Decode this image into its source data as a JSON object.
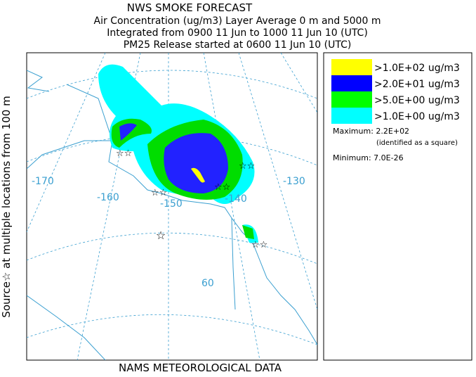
{
  "header": {
    "title": "NWS SMOKE FORECAST",
    "lines": [
      "Air Concentration (ug/m3) Layer Average    0 m and  5000 m",
      "Integrated from 0900 11 Jun to 1000 11 Jun 10 (UTC)",
      "PM25 Release started at 0600 11 Jun 10 (UTC)"
    ]
  },
  "legend": {
    "items": [
      {
        "label": ">1.0E+02 ug/m3",
        "color": "#ffff00"
      },
      {
        "label": ">2.0E+01 ug/m3",
        "color": "#0000ff"
      },
      {
        "label": ">5.0E+00 ug/m3",
        "color": "#00ff00"
      },
      {
        "label": ">1.0E+00 ug/m3",
        "color": "#00ffff"
      }
    ],
    "maximum": "Maximum: 2.2E+02",
    "maximum_note": "(identified as a square)",
    "minimum": "Minimum: 7.0E-26"
  },
  "side_label": "Source☆ at multiple locations from  100 m",
  "footer": "NAMS METEOROLOGICAL DATA",
  "map": {
    "longitude_labels": [
      "-170",
      "-160",
      "-150",
      "-140",
      "-130"
    ],
    "latitude_labels": [
      "60"
    ]
  }
}
